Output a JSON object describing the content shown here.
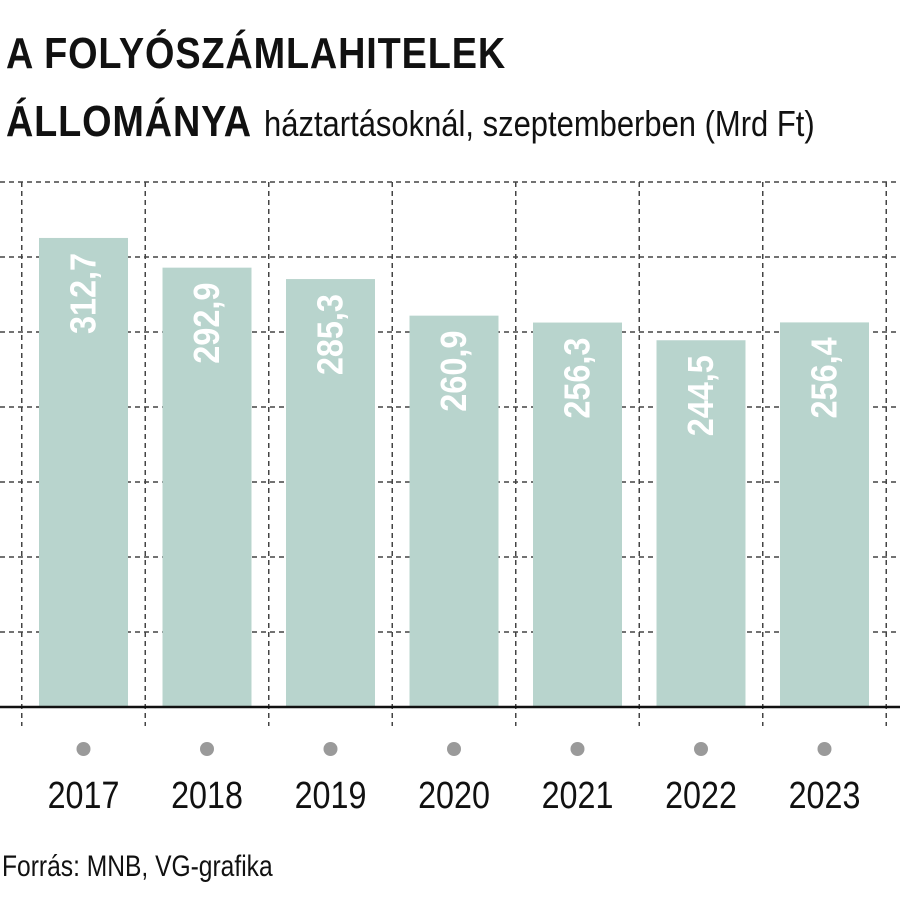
{
  "header": {
    "title_line1": "A FOLYÓSZÁMLAHITELEK",
    "title_line2": "ÁLLOMÁNYA",
    "subtitle": "háztartásoknál, szeptemberben (Mrd Ft)"
  },
  "footer": {
    "source": "Forrás: MNB, VG-grafika"
  },
  "chart_data": {
    "type": "bar",
    "title": "A FOLYÓSZÁMLAHITELEK ÁLLOMÁNYA",
    "subtitle": "háztartásoknál, szeptemberben (Mrd Ft)",
    "categories": [
      "2017",
      "2018",
      "2019",
      "2020",
      "2021",
      "2022",
      "2023"
    ],
    "values": [
      312.7,
      292.9,
      285.3,
      260.9,
      256.3,
      244.5,
      256.4
    ],
    "value_labels": [
      "312,7",
      "292,9",
      "285,3",
      "260,9",
      "256,3",
      "244,5",
      "256,4"
    ],
    "ylim": [
      0,
      350
    ],
    "grid": true,
    "colors": {
      "bar": "#b8d4cd",
      "grid": "#444444",
      "axis": "#111111",
      "marker": "#9a9a9a",
      "label": "#ffffff"
    }
  }
}
